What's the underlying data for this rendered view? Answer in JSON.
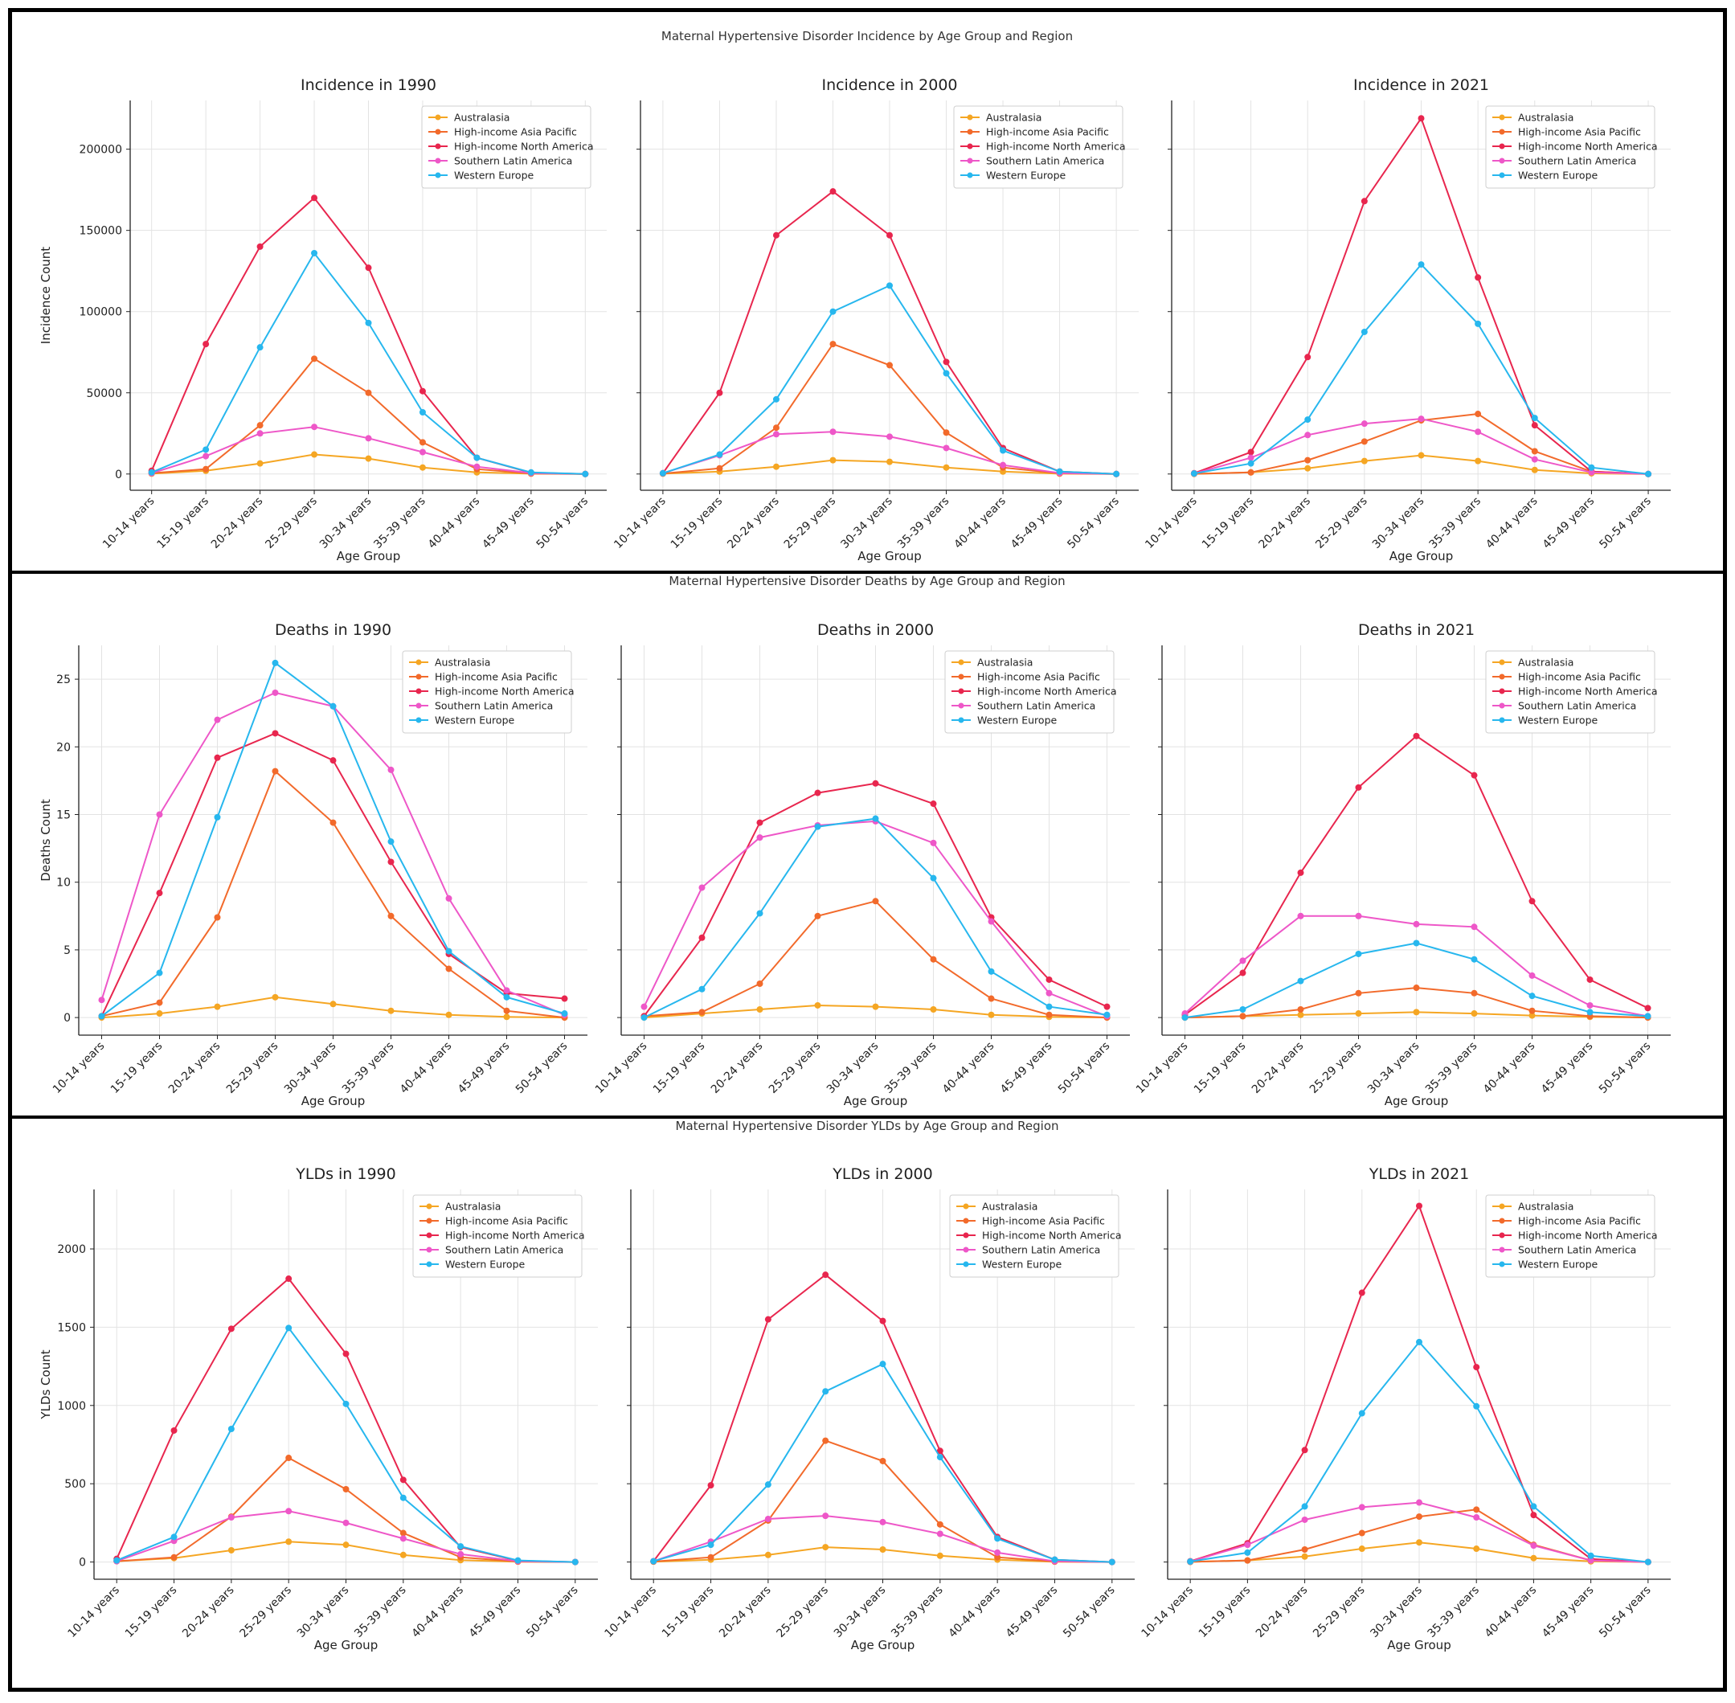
{
  "chart_data": [
    {
      "type": "line",
      "section_title": "Maternal Hypertensive Disorder Incidence by Age Group and Region",
      "ylabel": "Incidence Count",
      "xlabel": "Age Group",
      "yticks": [
        0,
        50000,
        100000,
        150000,
        200000
      ],
      "ylim": [
        -10000,
        230000
      ],
      "categories": [
        "10-14 years",
        "15-19 years",
        "20-24 years",
        "25-29 years",
        "30-34 years",
        "35-39 years",
        "40-44 years",
        "45-49 years",
        "50-54 years"
      ],
      "panels": [
        {
          "title": "Incidence in 1990",
          "series": [
            {
              "name": "Australasia",
              "values": [
                200,
                2000,
                6500,
                12000,
                9500,
                4000,
                1000,
                200,
                0
              ]
            },
            {
              "name": "High-income Asia Pacific",
              "values": [
                500,
                3000,
                30000,
                71000,
                50000,
                19500,
                3000,
                300,
                0
              ]
            },
            {
              "name": "High-income North America",
              "values": [
                2000,
                80000,
                140000,
                170000,
                127000,
                51000,
                10000,
                800,
                0
              ]
            },
            {
              "name": "Southern Latin America",
              "values": [
                500,
                11000,
                25000,
                29000,
                22000,
                13500,
                4500,
                600,
                0
              ]
            },
            {
              "name": "Western Europe",
              "values": [
                1000,
                15000,
                78000,
                136000,
                93000,
                38000,
                10000,
                1000,
                0
              ]
            }
          ]
        },
        {
          "title": "Incidence in 2000",
          "series": [
            {
              "name": "Australasia",
              "values": [
                200,
                1500,
                4500,
                8500,
                7500,
                4000,
                1500,
                200,
                0
              ]
            },
            {
              "name": "High-income Asia Pacific",
              "values": [
                300,
                3500,
                28500,
                80000,
                67000,
                25500,
                4000,
                400,
                0
              ]
            },
            {
              "name": "High-income North America",
              "values": [
                500,
                50000,
                147000,
                174000,
                147000,
                69000,
                16000,
                1500,
                0
              ]
            },
            {
              "name": "Southern Latin America",
              "values": [
                500,
                11500,
                24500,
                26000,
                23000,
                16000,
                5500,
                600,
                0
              ]
            },
            {
              "name": "Western Europe",
              "values": [
                500,
                12000,
                46000,
                100000,
                116000,
                62000,
                14500,
                1500,
                0
              ]
            }
          ]
        },
        {
          "title": "Incidence in 2021",
          "series": [
            {
              "name": "Australasia",
              "values": [
                100,
                1000,
                3500,
                8000,
                11500,
                8000,
                2500,
                400,
                0
              ]
            },
            {
              "name": "High-income Asia Pacific",
              "values": [
                100,
                1000,
                8500,
                20000,
                33000,
                37000,
                14000,
                1500,
                0
              ]
            },
            {
              "name": "High-income North America",
              "values": [
                500,
                13500,
                72000,
                168000,
                219000,
                121000,
                30000,
                1500,
                0
              ]
            },
            {
              "name": "Southern Latin America",
              "values": [
                300,
                10000,
                24000,
                31000,
                34000,
                26000,
                9000,
                1000,
                0
              ]
            },
            {
              "name": "Western Europe",
              "values": [
                300,
                6500,
                33500,
                87500,
                129000,
                92500,
                34500,
                4000,
                0
              ]
            }
          ]
        }
      ]
    },
    {
      "type": "line",
      "section_title": "Maternal Hypertensive Disorder Deaths by Age Group and Region",
      "ylabel": "Deaths Count",
      "xlabel": "Age Group",
      "yticks": [
        0,
        5,
        10,
        15,
        20,
        25
      ],
      "ylim": [
        -1.3,
        27.5
      ],
      "categories": [
        "10-14 years",
        "15-19 years",
        "20-24 years",
        "25-29 years",
        "30-34 years",
        "35-39 years",
        "40-44 years",
        "45-49 years",
        "50-54 years"
      ],
      "panels": [
        {
          "title": "Deaths in 1990",
          "series": [
            {
              "name": "Australasia",
              "values": [
                0.0,
                0.3,
                0.8,
                1.5,
                1.0,
                0.5,
                0.2,
                0.05,
                0.0
              ]
            },
            {
              "name": "High-income Asia Pacific",
              "values": [
                0.1,
                1.1,
                7.4,
                18.2,
                14.4,
                7.5,
                3.6,
                0.5,
                0.0
              ]
            },
            {
              "name": "High-income North America",
              "values": [
                0.1,
                9.2,
                19.2,
                21.0,
                19.0,
                11.5,
                4.7,
                1.8,
                1.4
              ]
            },
            {
              "name": "Southern Latin America",
              "values": [
                1.3,
                15.0,
                22.0,
                24.0,
                23.0,
                18.3,
                8.8,
                2.0,
                0.2
              ]
            },
            {
              "name": "Western Europe",
              "values": [
                0.1,
                3.3,
                14.8,
                26.2,
                23.0,
                13.0,
                4.9,
                1.5,
                0.3
              ]
            }
          ]
        },
        {
          "title": "Deaths in 2000",
          "series": [
            {
              "name": "Australasia",
              "values": [
                0.0,
                0.3,
                0.6,
                0.9,
                0.8,
                0.6,
                0.2,
                0.05,
                0.0
              ]
            },
            {
              "name": "High-income Asia Pacific",
              "values": [
                0.1,
                0.4,
                2.5,
                7.5,
                8.6,
                4.3,
                1.4,
                0.2,
                0.0
              ]
            },
            {
              "name": "High-income North America",
              "values": [
                0.1,
                5.9,
                14.4,
                16.6,
                17.3,
                15.8,
                7.4,
                2.8,
                0.8
              ]
            },
            {
              "name": "Southern Latin America",
              "values": [
                0.8,
                9.6,
                13.3,
                14.2,
                14.5,
                12.9,
                7.1,
                1.8,
                0.1
              ]
            },
            {
              "name": "Western Europe",
              "values": [
                0.0,
                2.1,
                7.7,
                14.1,
                14.7,
                10.3,
                3.4,
                0.8,
                0.2
              ]
            }
          ]
        },
        {
          "title": "Deaths in 2021",
          "series": [
            {
              "name": "Australasia",
              "values": [
                0.0,
                0.1,
                0.2,
                0.3,
                0.4,
                0.3,
                0.15,
                0.05,
                0.0
              ]
            },
            {
              "name": "High-income Asia Pacific",
              "values": [
                0.0,
                0.1,
                0.6,
                1.8,
                2.2,
                1.8,
                0.5,
                0.1,
                0.0
              ]
            },
            {
              "name": "High-income North America",
              "values": [
                0.2,
                3.3,
                10.7,
                17.0,
                20.8,
                17.9,
                8.6,
                2.8,
                0.7
              ]
            },
            {
              "name": "Southern Latin America",
              "values": [
                0.3,
                4.2,
                7.5,
                7.5,
                6.9,
                6.7,
                3.1,
                0.9,
                0.1
              ]
            },
            {
              "name": "Western Europe",
              "values": [
                0.0,
                0.6,
                2.7,
                4.7,
                5.5,
                4.3,
                1.6,
                0.4,
                0.1
              ]
            }
          ]
        }
      ]
    },
    {
      "type": "line",
      "section_title": "Maternal Hypertensive Disorder YLDs by Age Group and Region",
      "ylabel": "YLDs Count",
      "xlabel": "Age Group",
      "yticks": [
        0,
        500,
        1000,
        1500,
        2000
      ],
      "ylim": [
        -110,
        2380
      ],
      "categories": [
        "10-14 years",
        "15-19 years",
        "20-24 years",
        "25-29 years",
        "30-34 years",
        "35-39 years",
        "40-44 years",
        "45-49 years",
        "50-54 years"
      ],
      "panels": [
        {
          "title": "YLDs in 1990",
          "series": [
            {
              "name": "Australasia",
              "values": [
                5,
                25,
                75,
                130,
                110,
                45,
                12,
                2,
                0
              ]
            },
            {
              "name": "High-income Asia Pacific",
              "values": [
                5,
                30,
                290,
                665,
                465,
                185,
                30,
                3,
                0
              ]
            },
            {
              "name": "High-income North America",
              "values": [
                20,
                840,
                1490,
                1810,
                1330,
                525,
                95,
                8,
                0
              ]
            },
            {
              "name": "Southern Latin America",
              "values": [
                5,
                135,
                285,
                325,
                250,
                150,
                50,
                5,
                0
              ]
            },
            {
              "name": "Western Europe",
              "values": [
                10,
                160,
                850,
                1495,
                1010,
                410,
                100,
                10,
                0
              ]
            }
          ]
        },
        {
          "title": "YLDs in 2000",
          "series": [
            {
              "name": "Australasia",
              "values": [
                2,
                15,
                45,
                95,
                80,
                40,
                15,
                2,
                0
              ]
            },
            {
              "name": "High-income Asia Pacific",
              "values": [
                3,
                30,
                265,
                775,
                645,
                240,
                30,
                3,
                0
              ]
            },
            {
              "name": "High-income North America",
              "values": [
                5,
                490,
                1550,
                1835,
                1540,
                710,
                160,
                15,
                0
              ]
            },
            {
              "name": "Southern Latin America",
              "values": [
                5,
                130,
                275,
                295,
                255,
                180,
                60,
                5,
                0
              ]
            },
            {
              "name": "Western Europe",
              "values": [
                5,
                110,
                495,
                1090,
                1265,
                670,
                150,
                15,
                0
              ]
            }
          ]
        },
        {
          "title": "YLDs in 2021",
          "series": [
            {
              "name": "Australasia",
              "values": [
                1,
                10,
                35,
                85,
                125,
                85,
                25,
                4,
                0
              ]
            },
            {
              "name": "High-income Asia Pacific",
              "values": [
                1,
                10,
                80,
                185,
                290,
                335,
                110,
                10,
                0
              ]
            },
            {
              "name": "High-income North America",
              "values": [
                5,
                120,
                715,
                1720,
                2275,
                1245,
                300,
                20,
                0
              ]
            },
            {
              "name": "Southern Latin America",
              "values": [
                3,
                110,
                270,
                350,
                380,
                285,
                105,
                10,
                0
              ]
            },
            {
              "name": "Western Europe",
              "values": [
                3,
                60,
                355,
                950,
                1405,
                995,
                355,
                40,
                0
              ]
            }
          ]
        }
      ]
    }
  ],
  "legend": [
    {
      "name": "Australasia",
      "color": "#F5A623"
    },
    {
      "name": "High-income Asia Pacific",
      "color": "#F26A2B"
    },
    {
      "name": "High-income North America",
      "color": "#E8264E"
    },
    {
      "name": "Southern Latin America",
      "color": "#EE57C8"
    },
    {
      "name": "Western Europe",
      "color": "#27B7EE"
    }
  ],
  "ytick_labels": [
    [
      "0",
      "50000",
      "100000",
      "150000",
      "200000"
    ],
    [
      "0",
      "5",
      "10",
      "15",
      "20",
      "25"
    ],
    [
      "0",
      "500",
      "1000",
      "1500",
      "2000"
    ]
  ]
}
